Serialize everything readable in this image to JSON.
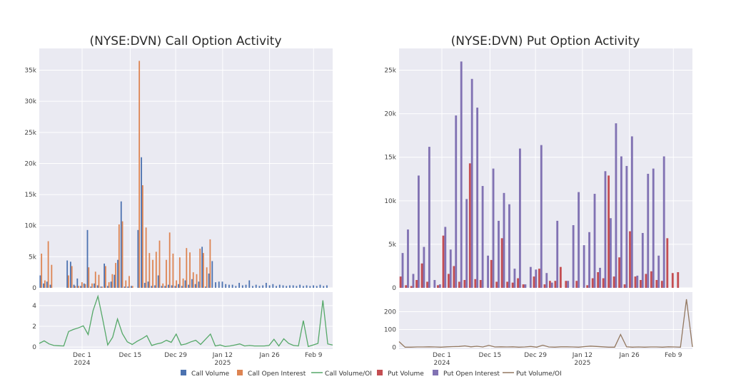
{
  "legend": {
    "call_volume": "Call Volume",
    "call_oi": "Call Open Interest",
    "call_ratio": "Call Volume/OI",
    "put_volume": "Put Volume",
    "put_oi": "Put Open Interest",
    "put_ratio": "Put Volume/OI"
  },
  "colors": {
    "call_volume": "#4c72b0",
    "call_oi": "#dd8452",
    "call_ratio": "#55a868",
    "put_volume": "#c44e52",
    "put_oi": "#8172b3",
    "put_ratio": "#937860",
    "plot_bg": "#eaeaf2"
  },
  "chart_data": [
    {
      "type": "bar",
      "title": "(NYSE:DVN) Call Option Activity",
      "x_ticks": [
        "Dec 1",
        "Dec 15",
        "Dec 29",
        "Jan 12",
        "Jan 26",
        "Feb 9"
      ],
      "x_tick_years": [
        "2024",
        "",
        "",
        "2025",
        "",
        ""
      ],
      "x_tick_index": [
        11,
        25,
        39,
        53,
        67,
        81
      ],
      "y_ticks": [
        "0",
        "5k",
        "10k",
        "15k",
        "20k",
        "25k",
        "30k",
        "35k"
      ],
      "ylim": [
        0,
        38500
      ],
      "ratio_ticks": [
        "0",
        "2",
        "4"
      ],
      "ratio_ylim": [
        -0.2,
        5.3
      ],
      "series": [
        {
          "name": "Call Volume",
          "values": [
            2000,
            700,
            1000,
            500,
            0,
            0,
            0,
            0,
            4400,
            4200,
            500,
            1500,
            300,
            700,
            9300,
            200,
            700,
            400,
            200,
            3900,
            300,
            1000,
            2100,
            4500,
            13900,
            200,
            200,
            300,
            0,
            9300,
            21000,
            800,
            1000,
            300,
            400,
            2000,
            300,
            300,
            500,
            400,
            300,
            600,
            300,
            1200,
            500,
            1400,
            600,
            1000,
            6600,
            200,
            2300,
            4300,
            900,
            1000,
            1000,
            600,
            500,
            500,
            300,
            800,
            400,
            500,
            1200,
            300,
            500,
            300,
            400,
            800,
            400,
            600,
            300,
            500,
            400,
            300,
            400,
            400,
            300,
            500,
            300,
            400,
            300,
            400,
            300,
            500,
            300,
            400
          ],
          "values_note": ""
        },
        {
          "name": "Call Open Interest",
          "values": [
            5500,
            1200,
            7500,
            3700,
            0,
            0,
            0,
            0,
            2000,
            3500,
            300,
            300,
            900,
            600,
            3300,
            700,
            2600,
            2100,
            200,
            3500,
            900,
            2200,
            4000,
            10200,
            10700,
            1200,
            1900,
            300,
            0,
            36500,
            16500,
            9700,
            5600,
            4500,
            5800,
            7600,
            700,
            4500,
            8900,
            5500,
            1200,
            4900,
            1500,
            6400,
            5700,
            2500,
            2200,
            6300,
            5600,
            3300,
            7800,
            0,
            0,
            0,
            0,
            0,
            0,
            0,
            0,
            0,
            0,
            0,
            0,
            0,
            0,
            0,
            0,
            0,
            0,
            0,
            0,
            0,
            0,
            0,
            0,
            0,
            0,
            0,
            0,
            0,
            0,
            0,
            0,
            0,
            0,
            0,
            0
          ]
        },
        {
          "name": "Call Volume/OI",
          "values": [
            0.35,
            0.6,
            0.3,
            0.15,
            0.12,
            0.1,
            1.5,
            1.7,
            1.85,
            2.05,
            1.2,
            3.5,
            4.9,
            2.6,
            0.2,
            0.95,
            2.7,
            1.3,
            0.5,
            0.25,
            0.55,
            0.8,
            1.1,
            0.15,
            0.3,
            0.4,
            0.65,
            0.45,
            1.25,
            0.2,
            0.3,
            0.5,
            0.65,
            0.25,
            0.75,
            1.25,
            0.1,
            0.2,
            0.05,
            0.1,
            0.2,
            0.3,
            0.1,
            0.15,
            0.1,
            0.1,
            0.1,
            0.15,
            0.75,
            0.1,
            0.8,
            0.35,
            0.15,
            0.1,
            2.55,
            0.05,
            0.2,
            0.35,
            4.5,
            0.3,
            0.2
          ]
        }
      ]
    },
    {
      "type": "bar",
      "title": "(NYSE:DVN) Put Option Activity",
      "x_ticks": [
        "Dec 1",
        "Dec 15",
        "Dec 29",
        "Jan 12",
        "Jan 26",
        "Feb 9"
      ],
      "x_tick_years": [
        "2024",
        "",
        "",
        "2025",
        "",
        ""
      ],
      "y_ticks": [
        "0",
        "5k",
        "10k",
        "15k",
        "20k",
        "25k"
      ],
      "ylim": [
        0,
        27500
      ],
      "ratio_ticks": [
        "0",
        "100",
        "200"
      ],
      "ratio_ylim": [
        -10,
        310
      ],
      "series": [
        {
          "name": "Put Volume",
          "values": [
            1300,
            300,
            200,
            900,
            2800,
            700,
            0,
            300,
            6000,
            1600,
            2500,
            700,
            900,
            14300,
            1000,
            900,
            0,
            3200,
            700,
            5700,
            700,
            600,
            1100,
            400,
            0,
            1300,
            2200,
            400,
            800,
            800,
            2400,
            800,
            0,
            800,
            0,
            300,
            1100,
            1800,
            1100,
            12900,
            1300,
            3500,
            400,
            6500,
            1300,
            900,
            1600,
            1900,
            900,
            800,
            5700,
            1700,
            1800,
            0,
            0
          ]
        },
        {
          "name": "Put Open Interest",
          "values": [
            4000,
            6700,
            1600,
            12900,
            4700,
            16200,
            900,
            400,
            7000,
            4400,
            19800,
            26000,
            10200,
            24000,
            20700,
            11700,
            3700,
            13700,
            7700,
            10900,
            9600,
            2200,
            16000,
            400,
            2400,
            2100,
            16400,
            1700,
            600,
            7700,
            0,
            800,
            7200,
            11000,
            4900,
            6400,
            10800,
            2300,
            13400,
            8000,
            18900,
            15100,
            14000,
            17400,
            1400,
            6300,
            13100,
            13700,
            3700,
            15100,
            0,
            0,
            0,
            0,
            0
          ]
        },
        {
          "name": "Put Volume/OI",
          "values": [
            32,
            1,
            1,
            2,
            2,
            3,
            2,
            1,
            3,
            4,
            5,
            8,
            3,
            6,
            2,
            11,
            2,
            3,
            2,
            3,
            1,
            2,
            5,
            1,
            12,
            2,
            1,
            3,
            3,
            2,
            1,
            4,
            7,
            5,
            3,
            1,
            1,
            72,
            3,
            1,
            2,
            1,
            2,
            2,
            1,
            3,
            2,
            1,
            270,
            2
          ]
        }
      ]
    }
  ]
}
